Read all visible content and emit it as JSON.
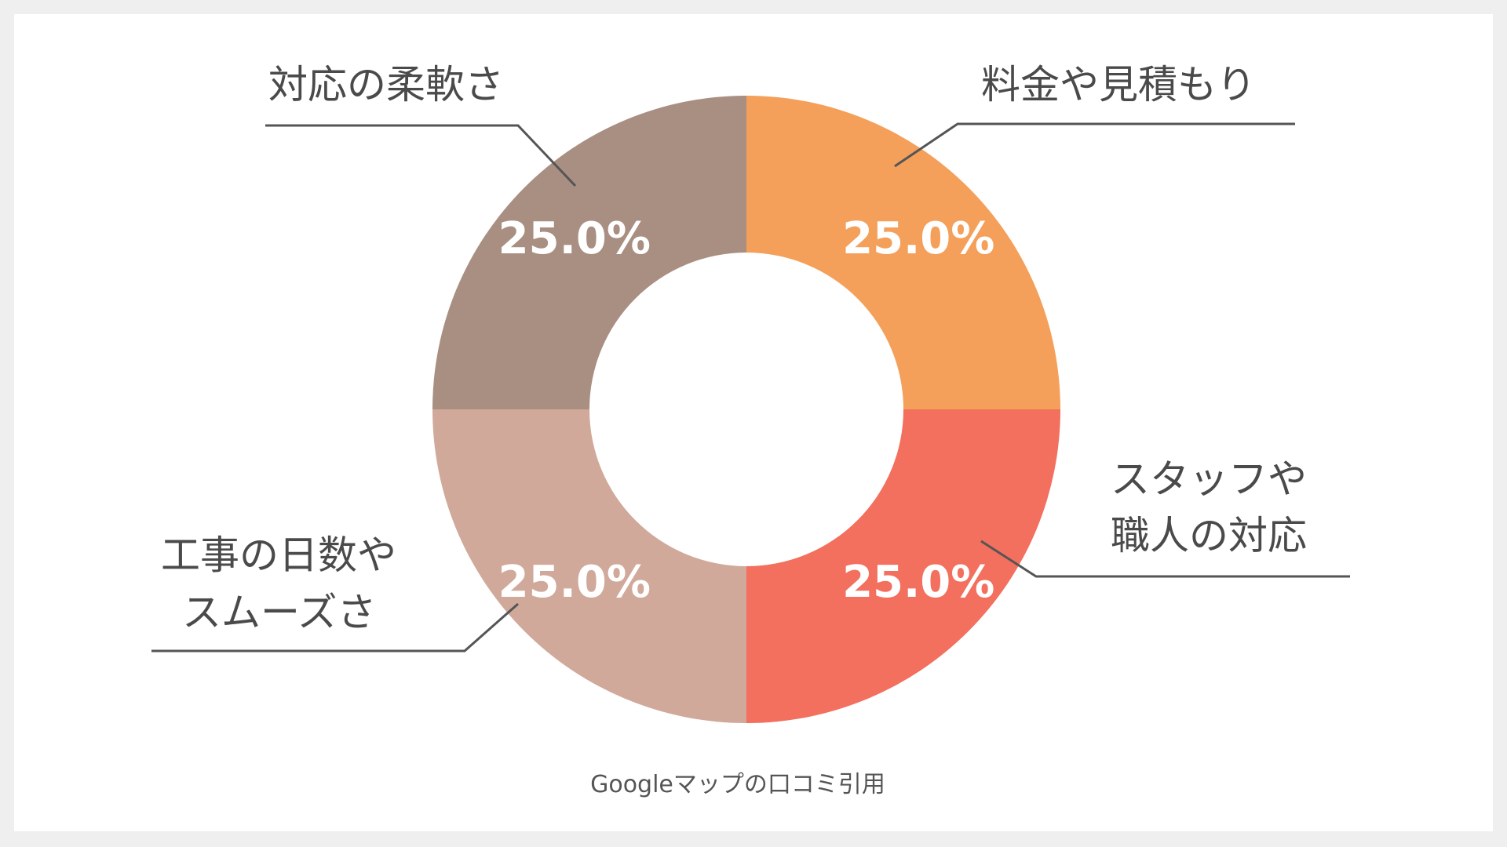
{
  "chart_data": {
    "type": "pie",
    "donut": true,
    "title": "",
    "categories": [
      "料金や見積もり",
      "スタッフや職人の対応",
      "工事の日数やスムーズさ",
      "対応の柔軟さ"
    ],
    "category_lines": [
      [
        "料金や見積もり"
      ],
      [
        "スタッフや",
        "職人の対応"
      ],
      [
        "工事の日数や",
        "スムーズさ"
      ],
      [
        "対応の柔軟さ"
      ]
    ],
    "values": [
      25.0,
      25.0,
      25.0,
      25.0
    ],
    "value_labels": [
      "25.0%",
      "25.0%",
      "25.0%",
      "25.0%"
    ],
    "colors": [
      "#f4a05a",
      "#f36f5e",
      "#d0a99b",
      "#a98e82"
    ],
    "legend": "none"
  },
  "source_note": "Googleマップの口コミ引用"
}
